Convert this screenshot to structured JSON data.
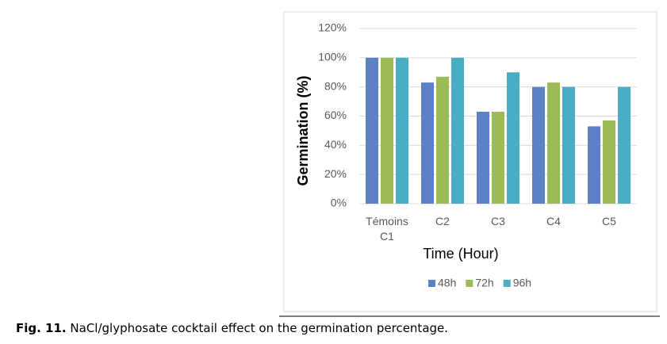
{
  "chart_data": {
    "type": "bar",
    "x_label": "Time (Hour)",
    "y_label": "Germination (%)",
    "categories": [
      "Témoins C1",
      "C2",
      "C3",
      "C4",
      "C5"
    ],
    "series": [
      {
        "name": "48h",
        "color": "#5b80c4",
        "values": [
          100,
          83,
          63,
          80,
          53
        ]
      },
      {
        "name": "72h",
        "color": "#9bbb59",
        "values": [
          100,
          87,
          63,
          83,
          57
        ]
      },
      {
        "name": "96h",
        "color": "#4bacc6",
        "values": [
          100,
          100,
          90,
          80,
          80
        ]
      }
    ],
    "ylim": [
      0,
      120
    ],
    "yticks": [
      {
        "value": 0,
        "label": "0%"
      },
      {
        "value": 20,
        "label": "20%"
      },
      {
        "value": 40,
        "label": "40%"
      },
      {
        "value": 60,
        "label": "60%"
      },
      {
        "value": 80,
        "label": "80%"
      },
      {
        "value": 100,
        "label": "100%"
      },
      {
        "value": 120,
        "label": "120%"
      }
    ],
    "grid": true,
    "legend": "bottom"
  },
  "caption": {
    "label": "Fig. 11.",
    "text": "NaCl/glyphosate cocktail effect on the germination percentage."
  }
}
